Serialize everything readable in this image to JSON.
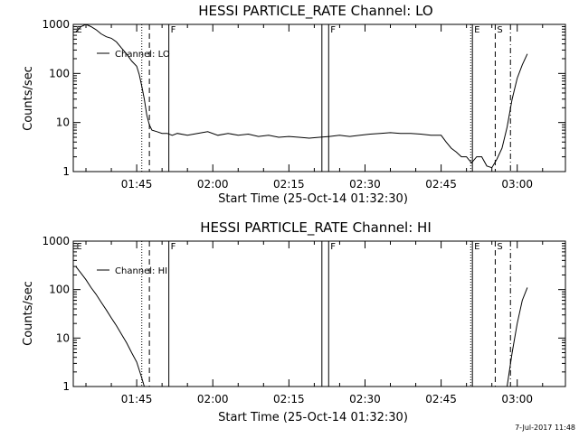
{
  "footer_timestamp": "7-Jul-2017 11:48",
  "chart_data": [
    {
      "type": "line",
      "title": "HESSI PARTICLE_RATE Channel: LO",
      "xlabel": "Start Time (25-Oct-14 01:32:30)",
      "ylabel": "Counts/sec",
      "yscale": "log",
      "ylim": [
        1,
        1000
      ],
      "xlim": [
        "01:32:30",
        "03:09:30"
      ],
      "x_unit": "UT time (HH:MM)",
      "xticks": [
        "01:45",
        "02:00",
        "02:15",
        "02:30",
        "02:45",
        "03:00"
      ],
      "yticks": [
        "1",
        "10",
        "100",
        "1000"
      ],
      "legend": "Channel: LO",
      "event_markers": [
        {
          "label": "E",
          "time": "01:32:45",
          "style": "none"
        },
        {
          "label": "",
          "time": "01:46:00",
          "style": "dotted"
        },
        {
          "label": "",
          "time": "01:47:30",
          "style": "dashed"
        },
        {
          "label": "F",
          "time": "01:51:20",
          "style": "solid"
        },
        {
          "label": "",
          "time": "02:21:30",
          "style": "solid"
        },
        {
          "label": "F",
          "time": "02:22:50",
          "style": "solid"
        },
        {
          "label": "",
          "time": "02:50:50",
          "style": "dotted"
        },
        {
          "label": "E",
          "time": "02:51:10",
          "style": "solid"
        },
        {
          "label": "S",
          "time": "02:55:40",
          "style": "dashed"
        },
        {
          "label": "",
          "time": "02:58:40",
          "style": "dash-dot"
        }
      ],
      "series": [
        {
          "name": "Channel: LO",
          "points": [
            [
              "01:33:00",
              700
            ],
            [
              "01:34:00",
              900
            ],
            [
              "01:35:00",
              1000
            ],
            [
              "01:36:00",
              900
            ],
            [
              "01:37:00",
              780
            ],
            [
              "01:38:00",
              640
            ],
            [
              "01:39:00",
              560
            ],
            [
              "01:40:00",
              520
            ],
            [
              "01:41:00",
              440
            ],
            [
              "01:42:00",
              330
            ],
            [
              "01:43:00",
              250
            ],
            [
              "01:44:00",
              180
            ],
            [
              "01:45:00",
              140
            ],
            [
              "01:45:30",
              95
            ],
            [
              "01:46:00",
              55
            ],
            [
              "01:46:30",
              30
            ],
            [
              "01:47:00",
              14
            ],
            [
              "01:47:30",
              9
            ],
            [
              "01:48:00",
              7
            ],
            [
              "01:49:00",
              6.5
            ],
            [
              "01:50:00",
              6
            ],
            [
              "01:51:00",
              6
            ],
            [
              "01:52:00",
              5.5
            ],
            [
              "01:53:00",
              6
            ],
            [
              "01:55:00",
              5.5
            ],
            [
              "01:57:00",
              6
            ],
            [
              "01:59:00",
              6.5
            ],
            [
              "02:01:00",
              5.5
            ],
            [
              "02:03:00",
              6
            ],
            [
              "02:05:00",
              5.5
            ],
            [
              "02:07:00",
              5.8
            ],
            [
              "02:09:00",
              5.2
            ],
            [
              "02:11:00",
              5.5
            ],
            [
              "02:13:00",
              5
            ],
            [
              "02:15:00",
              5.2
            ],
            [
              "02:17:00",
              5
            ],
            [
              "02:19:00",
              4.8
            ],
            [
              "02:21:00",
              5
            ],
            [
              "02:23:00",
              5.2
            ],
            [
              "02:25:00",
              5.5
            ],
            [
              "02:27:00",
              5.2
            ],
            [
              "02:29:00",
              5.5
            ],
            [
              "02:31:00",
              5.8
            ],
            [
              "02:33:00",
              6
            ],
            [
              "02:35:00",
              6.2
            ],
            [
              "02:37:00",
              6
            ],
            [
              "02:39:00",
              6
            ],
            [
              "02:41:00",
              5.8
            ],
            [
              "02:43:00",
              5.5
            ],
            [
              "02:45:00",
              5.5
            ],
            [
              "02:46:00",
              4
            ],
            [
              "02:47:00",
              3
            ],
            [
              "02:48:00",
              2.5
            ],
            [
              "02:49:00",
              2
            ],
            [
              "02:50:00",
              2
            ],
            [
              "02:51:00",
              1.5
            ],
            [
              "02:52:00",
              2
            ],
            [
              "02:53:00",
              2
            ],
            [
              "02:54:00",
              1.3
            ],
            [
              "02:55:00",
              1.2
            ],
            [
              "02:56:00",
              1.8
            ],
            [
              "02:57:00",
              3
            ],
            [
              "02:58:00",
              8
            ],
            [
              "02:59:00",
              30
            ],
            [
              "03:00:00",
              80
            ],
            [
              "03:01:00",
              150
            ],
            [
              "03:02:00",
              250
            ]
          ]
        }
      ]
    },
    {
      "type": "line",
      "title": "HESSI PARTICLE_RATE Channel: HI",
      "xlabel": "Start Time (25-Oct-14 01:32:30)",
      "ylabel": "Counts/sec",
      "yscale": "log",
      "ylim": [
        1,
        1000
      ],
      "xlim": [
        "01:32:30",
        "03:09:30"
      ],
      "x_unit": "UT time (HH:MM)",
      "xticks": [
        "01:45",
        "02:00",
        "02:15",
        "02:30",
        "02:45",
        "03:00"
      ],
      "yticks": [
        "1",
        "10",
        "100",
        "1000"
      ],
      "legend": "Channel: HI",
      "event_markers": [
        {
          "label": "E",
          "time": "01:32:45",
          "style": "none"
        },
        {
          "label": "",
          "time": "01:46:00",
          "style": "dotted"
        },
        {
          "label": "",
          "time": "01:47:30",
          "style": "dashed"
        },
        {
          "label": "F",
          "time": "01:51:20",
          "style": "solid"
        },
        {
          "label": "",
          "time": "02:21:30",
          "style": "solid"
        },
        {
          "label": "F",
          "time": "02:22:50",
          "style": "solid"
        },
        {
          "label": "",
          "time": "02:50:50",
          "style": "dotted"
        },
        {
          "label": "E",
          "time": "02:51:10",
          "style": "solid"
        },
        {
          "label": "S",
          "time": "02:55:40",
          "style": "dashed"
        },
        {
          "label": "",
          "time": "02:58:40",
          "style": "dash-dot"
        }
      ],
      "series": [
        {
          "name": "Channel: HI",
          "points": [
            [
              "01:33:00",
              300
            ],
            [
              "01:34:00",
              220
            ],
            [
              "01:35:00",
              160
            ],
            [
              "01:36:00",
              110
            ],
            [
              "01:37:00",
              80
            ],
            [
              "01:38:00",
              55
            ],
            [
              "01:39:00",
              38
            ],
            [
              "01:40:00",
              26
            ],
            [
              "01:41:00",
              18
            ],
            [
              "01:42:00",
              12
            ],
            [
              "01:43:00",
              8
            ],
            [
              "01:44:00",
              5
            ],
            [
              "01:45:00",
              3.2
            ],
            [
              "01:45:30",
              2.2
            ],
            [
              "01:46:00",
              1.5
            ],
            [
              "01:46:30",
              1
            ],
            null,
            [
              "02:58:00",
              1
            ],
            [
              "02:59:00",
              5
            ],
            [
              "03:00:00",
              20
            ],
            [
              "03:01:00",
              60
            ],
            [
              "03:02:00",
              110
            ]
          ]
        }
      ]
    }
  ]
}
